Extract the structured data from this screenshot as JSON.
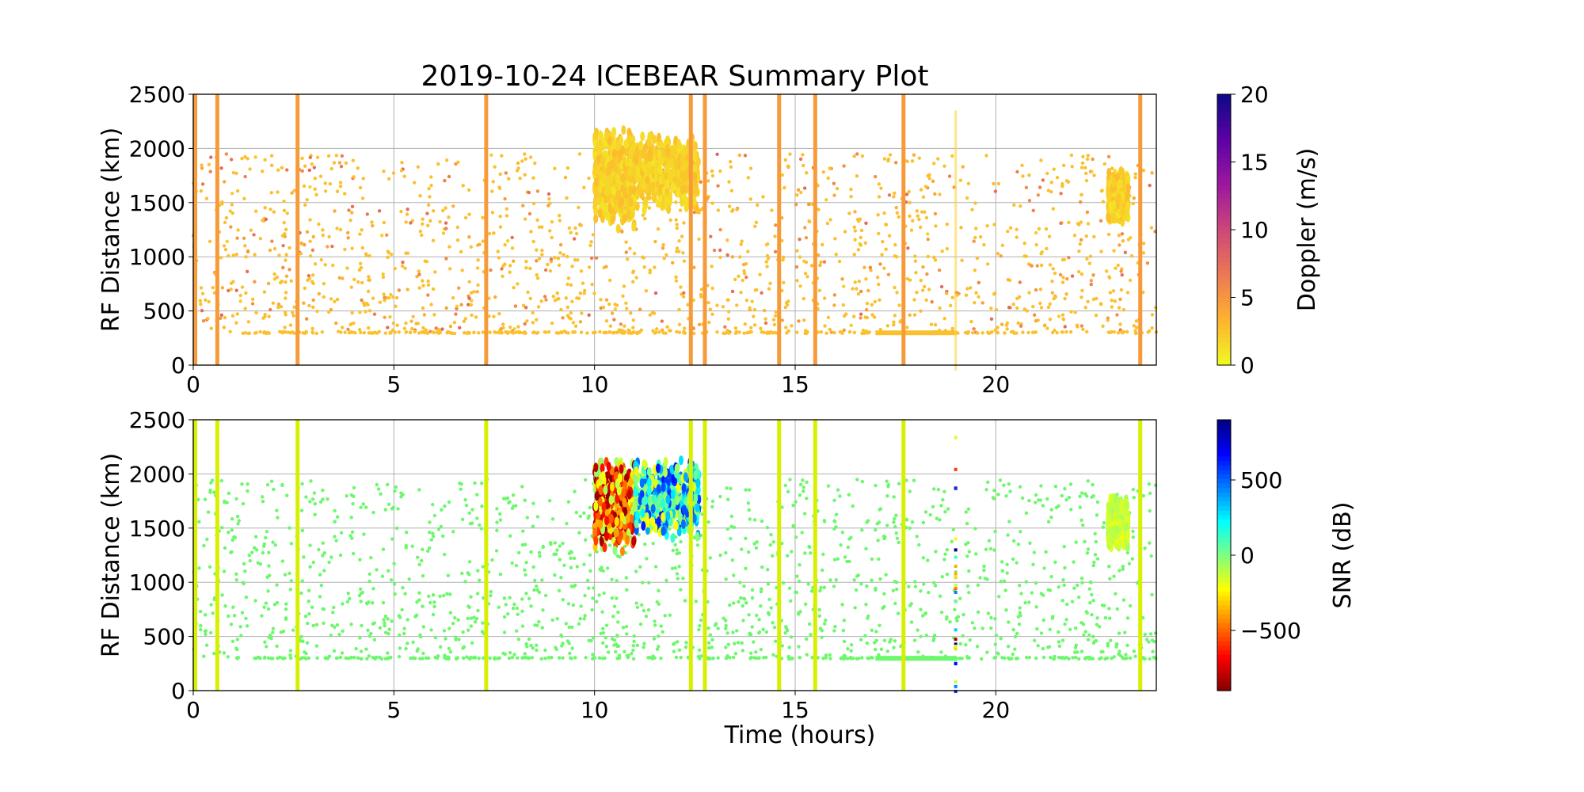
{
  "chart_data": [
    {
      "type": "scatter",
      "title": "2019-10-24 ICEBEAR Summary Plot",
      "xlabel": "",
      "ylabel": "RF Distance (km)",
      "xlim": [
        0,
        24
      ],
      "ylim": [
        0,
        2500
      ],
      "xticks": [
        "0",
        "5",
        "10",
        "15",
        "20"
      ],
      "yticks": [
        "0",
        "500",
        "1000",
        "1500",
        "2000",
        "2500"
      ],
      "grid": true,
      "color_variable": "doppler",
      "colorbar": {
        "label": "Doppler (m/s)",
        "range": [
          0,
          20
        ],
        "ticks": [
          "0",
          "5",
          "10",
          "15",
          "20"
        ],
        "colormap": "plasma_r"
      },
      "vertical_streaks_hours": [
        0.05,
        0.6,
        2.6,
        7.3,
        12.4,
        12.75,
        14.6,
        15.5,
        17.7,
        23.6
      ],
      "streak_color": "#f79a3a",
      "background_color": "#fbc02d",
      "clusters": [
        {
          "t": [
            10.0,
            11.0
          ],
          "r": [
            1250,
            2200
          ],
          "value": 1
        },
        {
          "t": [
            11.0,
            12.6
          ],
          "r": [
            1400,
            2150
          ],
          "value": 1
        },
        {
          "t": [
            22.8,
            23.3
          ],
          "r": [
            1300,
            1800
          ],
          "value": 1
        }
      ],
      "scatter_range_km": [
        300,
        1950
      ],
      "floor_band_km": 300
    },
    {
      "type": "scatter",
      "xlabel": "Time (hours)",
      "ylabel": "RF Distance (km)",
      "xlim": [
        0,
        24
      ],
      "ylim": [
        0,
        2500
      ],
      "xticks": [
        "0",
        "5",
        "10",
        "15",
        "20"
      ],
      "yticks": [
        "0",
        "500",
        "1000",
        "1500",
        "2000",
        "2500"
      ],
      "grid": true,
      "color_variable": "snr",
      "colorbar": {
        "label": "SNR (dB)",
        "range": [
          -900,
          900
        ],
        "ticks": [
          "−500",
          "0",
          "500"
        ],
        "tick_values": [
          -500,
          0,
          500
        ],
        "colormap": "jet"
      },
      "vertical_streaks_hours": [
        0.05,
        0.6,
        2.6,
        7.3,
        12.4,
        12.75,
        14.6,
        15.5,
        17.7,
        23.6
      ],
      "streak_color": "#d7f000",
      "background_color": "#6cf76c",
      "clusters": [
        {
          "t": [
            10.0,
            11.0
          ],
          "r": [
            1250,
            2200
          ],
          "value": -450
        },
        {
          "t": [
            11.0,
            12.6
          ],
          "r": [
            1400,
            2150
          ],
          "value": 200
        },
        {
          "t": [
            22.8,
            23.3
          ],
          "r": [
            1300,
            1800
          ],
          "value": -120
        }
      ],
      "scatter_range_km": [
        300,
        1950
      ],
      "floor_band_km": 300
    }
  ]
}
